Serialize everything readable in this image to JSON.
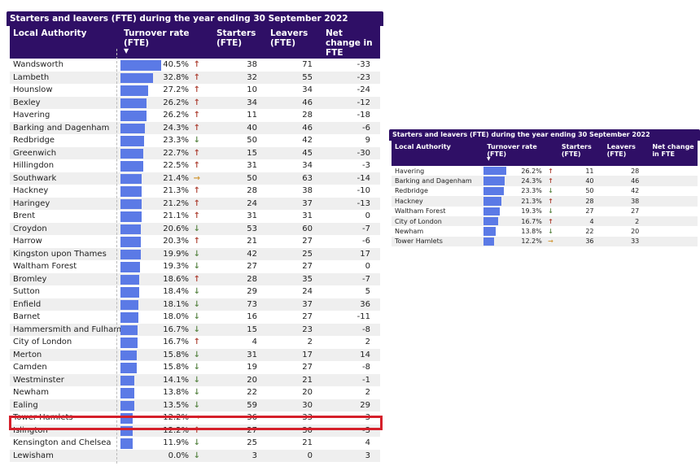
{
  "colors": {
    "header": "#2f0f66",
    "bar": "#5b7ae6",
    "up": "#b0473a",
    "down": "#5f8a4c",
    "flat": "#d29a3a",
    "highlight": "#d51f2a"
  },
  "main_table": {
    "title": "Starters and leavers (FTE) during the year ending 30 September 2022",
    "headers": [
      "Local Authority",
      "Turnover rate (FTE)",
      "Starters (FTE)",
      "Leavers (FTE)",
      "Net change in FTE"
    ],
    "sort_indicator": "chevron-down-icon",
    "rows": [
      {
        "la": "Wandsworth",
        "rate": 40.5,
        "rate_text": "40.5%",
        "trend": "up",
        "starters": "38",
        "leavers": "71",
        "net": "-33"
      },
      {
        "la": "Lambeth",
        "rate": 32.8,
        "rate_text": "32.8%",
        "trend": "up",
        "starters": "32",
        "leavers": "55",
        "net": "-23"
      },
      {
        "la": "Hounslow",
        "rate": 27.2,
        "rate_text": "27.2%",
        "trend": "up",
        "starters": "10",
        "leavers": "34",
        "net": "-24"
      },
      {
        "la": "Bexley",
        "rate": 26.2,
        "rate_text": "26.2%",
        "trend": "up",
        "starters": "34",
        "leavers": "46",
        "net": "-12"
      },
      {
        "la": "Havering",
        "rate": 26.2,
        "rate_text": "26.2%",
        "trend": "up",
        "starters": "11",
        "leavers": "28",
        "net": "-18"
      },
      {
        "la": "Barking and Dagenham",
        "rate": 24.3,
        "rate_text": "24.3%",
        "trend": "up",
        "starters": "40",
        "leavers": "46",
        "net": "-6"
      },
      {
        "la": "Redbridge",
        "rate": 23.3,
        "rate_text": "23.3%",
        "trend": "down",
        "starters": "50",
        "leavers": "42",
        "net": "9"
      },
      {
        "la": "Greenwich",
        "rate": 22.7,
        "rate_text": "22.7%",
        "trend": "up",
        "starters": "15",
        "leavers": "45",
        "net": "-30"
      },
      {
        "la": "Hillingdon",
        "rate": 22.5,
        "rate_text": "22.5%",
        "trend": "up",
        "starters": "31",
        "leavers": "34",
        "net": "-3"
      },
      {
        "la": "Southwark",
        "rate": 21.4,
        "rate_text": "21.4%",
        "trend": "flat",
        "starters": "50",
        "leavers": "63",
        "net": "-14"
      },
      {
        "la": "Hackney",
        "rate": 21.3,
        "rate_text": "21.3%",
        "trend": "up",
        "starters": "28",
        "leavers": "38",
        "net": "-10"
      },
      {
        "la": "Haringey",
        "rate": 21.2,
        "rate_text": "21.2%",
        "trend": "up",
        "starters": "24",
        "leavers": "37",
        "net": "-13"
      },
      {
        "la": "Brent",
        "rate": 21.1,
        "rate_text": "21.1%",
        "trend": "up",
        "starters": "31",
        "leavers": "31",
        "net": "0"
      },
      {
        "la": "Croydon",
        "rate": 20.6,
        "rate_text": "20.6%",
        "trend": "down",
        "starters": "53",
        "leavers": "60",
        "net": "-7"
      },
      {
        "la": "Harrow",
        "rate": 20.3,
        "rate_text": "20.3%",
        "trend": "up",
        "starters": "21",
        "leavers": "27",
        "net": "-6"
      },
      {
        "la": "Kingston upon Thames",
        "rate": 19.9,
        "rate_text": "19.9%",
        "trend": "down",
        "starters": "42",
        "leavers": "25",
        "net": "17"
      },
      {
        "la": "Waltham Forest",
        "rate": 19.3,
        "rate_text": "19.3%",
        "trend": "down",
        "starters": "27",
        "leavers": "27",
        "net": "0"
      },
      {
        "la": "Bromley",
        "rate": 18.6,
        "rate_text": "18.6%",
        "trend": "up",
        "starters": "28",
        "leavers": "35",
        "net": "-7"
      },
      {
        "la": "Sutton",
        "rate": 18.4,
        "rate_text": "18.4%",
        "trend": "down",
        "starters": "29",
        "leavers": "24",
        "net": "5"
      },
      {
        "la": "Enfield",
        "rate": 18.1,
        "rate_text": "18.1%",
        "trend": "down",
        "starters": "73",
        "leavers": "37",
        "net": "36"
      },
      {
        "la": "Barnet",
        "rate": 18.0,
        "rate_text": "18.0%",
        "trend": "down",
        "starters": "16",
        "leavers": "27",
        "net": "-11"
      },
      {
        "la": "Hammersmith and Fulham",
        "rate": 16.7,
        "rate_text": "16.7%",
        "trend": "down",
        "starters": "15",
        "leavers": "23",
        "net": "-8"
      },
      {
        "la": "City of London",
        "rate": 16.7,
        "rate_text": "16.7%",
        "trend": "up",
        "starters": "4",
        "leavers": "2",
        "net": "2"
      },
      {
        "la": "Merton",
        "rate": 15.8,
        "rate_text": "15.8%",
        "trend": "down",
        "starters": "31",
        "leavers": "17",
        "net": "14"
      },
      {
        "la": "Camden",
        "rate": 15.8,
        "rate_text": "15.8%",
        "trend": "down",
        "starters": "19",
        "leavers": "27",
        "net": "-8"
      },
      {
        "la": "Westminster",
        "rate": 14.1,
        "rate_text": "14.1%",
        "trend": "down",
        "starters": "20",
        "leavers": "21",
        "net": "-1"
      },
      {
        "la": "Newham",
        "rate": 13.8,
        "rate_text": "13.8%",
        "trend": "down",
        "starters": "22",
        "leavers": "20",
        "net": "2"
      },
      {
        "la": "Ealing",
        "rate": 13.5,
        "rate_text": "13.5%",
        "trend": "down",
        "starters": "59",
        "leavers": "30",
        "net": "29"
      },
      {
        "la": "Tower Hamlets",
        "rate": 12.2,
        "rate_text": "12.2%",
        "trend": "flat",
        "starters": "36",
        "leavers": "33",
        "net": "3"
      },
      {
        "la": "Islington",
        "rate": 12.2,
        "rate_text": "12.2%",
        "trend": "up",
        "starters": "27",
        "leavers": "30",
        "net": "-3"
      },
      {
        "la": "Kensington and Chelsea",
        "rate": 11.9,
        "rate_text": "11.9%",
        "trend": "down",
        "starters": "25",
        "leavers": "21",
        "net": "4"
      },
      {
        "la": "Lewisham",
        "rate": 0.0,
        "rate_text": "0.0%",
        "trend": "down",
        "starters": "3",
        "leavers": "0",
        "net": "3"
      }
    ]
  },
  "inset_table": {
    "title": "Starters and leavers (FTE) during the year ending 30 September 2022",
    "headers": [
      "Local Authority",
      "Turnover rate (FTE)",
      "Starters (FTE)",
      "Leavers (FTE)",
      "Net change in FTE"
    ],
    "sort_indicator": "chevron-down-icon",
    "rows": [
      {
        "la": "Havering",
        "rate": 26.2,
        "rate_text": "26.2%",
        "trend": "up",
        "starters": "11",
        "leavers": "28",
        "net": ""
      },
      {
        "la": "Barking and Dagenham",
        "rate": 24.3,
        "rate_text": "24.3%",
        "trend": "up",
        "starters": "40",
        "leavers": "46",
        "net": ""
      },
      {
        "la": "Redbridge",
        "rate": 23.3,
        "rate_text": "23.3%",
        "trend": "down",
        "starters": "50",
        "leavers": "42",
        "net": ""
      },
      {
        "la": "Hackney",
        "rate": 21.3,
        "rate_text": "21.3%",
        "trend": "up",
        "starters": "28",
        "leavers": "38",
        "net": ""
      },
      {
        "la": "Waltham Forest",
        "rate": 19.3,
        "rate_text": "19.3%",
        "trend": "down",
        "starters": "27",
        "leavers": "27",
        "net": ""
      },
      {
        "la": "City of London",
        "rate": 16.7,
        "rate_text": "16.7%",
        "trend": "up",
        "starters": "4",
        "leavers": "2",
        "net": ""
      },
      {
        "la": "Newham",
        "rate": 13.8,
        "rate_text": "13.8%",
        "trend": "down",
        "starters": "22",
        "leavers": "20",
        "net": ""
      },
      {
        "la": "Tower Hamlets",
        "rate": 12.2,
        "rate_text": "12.2%",
        "trend": "flat",
        "starters": "36",
        "leavers": "33",
        "net": ""
      }
    ]
  }
}
